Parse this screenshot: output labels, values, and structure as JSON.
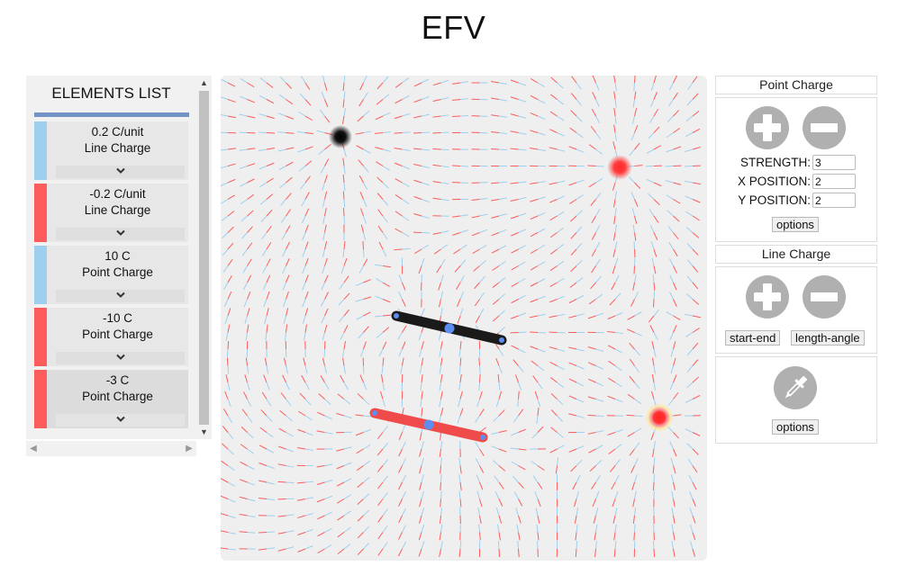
{
  "app": {
    "title": "EFV"
  },
  "elements_panel": {
    "title": "ELEMENTS LIST",
    "items": [
      {
        "value": "0.2 C/unit",
        "type": "Line Charge",
        "color": "#9ecfee"
      },
      {
        "value": "-0.2 C/unit",
        "type": "Line Charge",
        "color": "#fc5c5c"
      },
      {
        "value": "10 C",
        "type": "Point Charge",
        "color": "#9ecfee"
      },
      {
        "value": "-10 C",
        "type": "Point Charge",
        "color": "#fc5c5c"
      },
      {
        "value": "-3 C",
        "type": "Point Charge",
        "color": "#fc5c5c"
      }
    ]
  },
  "point_charge": {
    "title": "Point Charge",
    "strength_label": "STRENGTH:",
    "strength_value": "3",
    "x_label": "X POSITION:",
    "x_value": "2",
    "y_label": "Y POSITION:",
    "y_value": "2",
    "options_label": "options"
  },
  "line_charge": {
    "title": "Line Charge",
    "start_end_label": "start-end",
    "length_angle_label": "length-angle"
  },
  "probe": {
    "options_label": "options"
  },
  "colors": {
    "positive": "#9ecfee",
    "negative": "#fc5c5c",
    "accent": "#7393c7",
    "button_gray": "#b0b0b0",
    "handle_blue": "#5b8ef0"
  }
}
